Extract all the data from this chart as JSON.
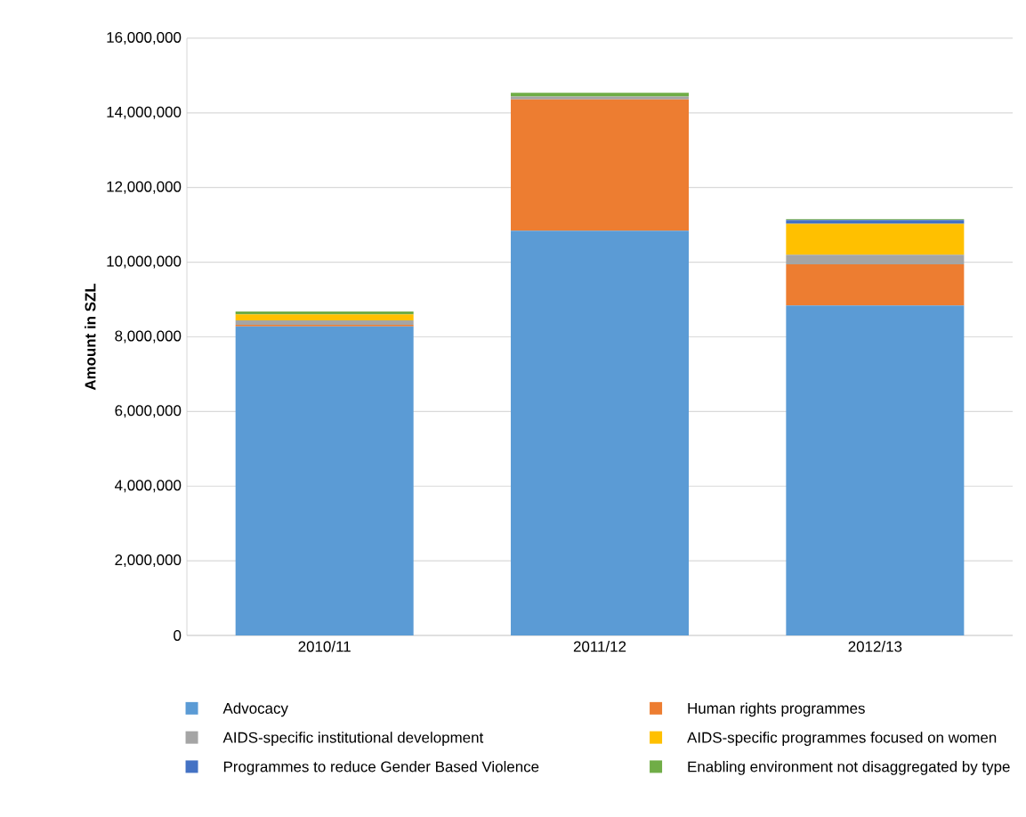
{
  "chart_data": {
    "type": "bar",
    "stacked": true,
    "ylabel": "Amount in SZL",
    "categories": [
      "2010/11",
      "2011/12",
      "2012/13"
    ],
    "series": [
      {
        "name": "Advocacy",
        "color": "#5b9bd5",
        "values": [
          8280000,
          10840000,
          8840000
        ]
      },
      {
        "name": "Human rights programmes",
        "color": "#ed7d31",
        "values": [
          40000,
          3520000,
          1100000
        ]
      },
      {
        "name": "AIDS-specific institutional development",
        "color": "#a5a5a5",
        "values": [
          120000,
          80000,
          260000
        ]
      },
      {
        "name": "AIDS-specific programmes focused on women",
        "color": "#ffc000",
        "values": [
          160000,
          0,
          830000
        ]
      },
      {
        "name": "Programmes to reduce Gender Based Violence",
        "color": "#4472c4",
        "values": [
          0,
          0,
          100000
        ]
      },
      {
        "name": "Enabling environment not disaggregated by type",
        "color": "#70ad47",
        "values": [
          80000,
          100000,
          20000
        ]
      }
    ],
    "ylim": [
      0,
      16000000
    ],
    "yticks": [
      0,
      {
        "value": 2000000,
        "label": "2,000,000"
      },
      {
        "value": 4000000,
        "label": "4,000,000"
      },
      {
        "value": 6000000,
        "label": "6,000,000"
      },
      {
        "value": 8000000,
        "label": "8,000,000"
      },
      {
        "value": 10000000,
        "label": "10,000,000"
      },
      {
        "value": 12000000,
        "label": "12,000,000"
      },
      {
        "value": 14000000,
        "label": "14,000,000"
      },
      {
        "value": 16000000,
        "label": "16,000,000"
      }
    ],
    "grid": "y",
    "legend": "bottom"
  }
}
